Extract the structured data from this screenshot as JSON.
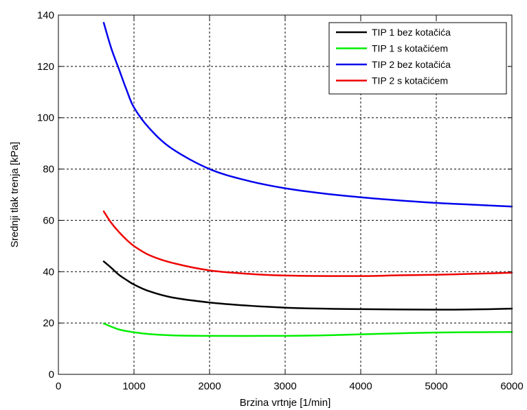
{
  "chart_data": {
    "type": "line",
    "xlabel": "Brzina vrtnje [1/min]",
    "ylabel": "Srednji tlak trenja [kPa]",
    "xlim": [
      0,
      6000
    ],
    "ylim": [
      0,
      140
    ],
    "xticks": [
      0,
      1000,
      2000,
      3000,
      4000,
      5000,
      6000
    ],
    "yticks": [
      0,
      20,
      40,
      60,
      80,
      100,
      120,
      140
    ],
    "grid": true,
    "grid_style": "dashed",
    "legend_position": "top-right",
    "series": [
      {
        "name": "TIP 1 bez kotačića",
        "color": "#000000",
        "points": [
          [
            600,
            44
          ],
          [
            700,
            41.5
          ],
          [
            800,
            38.8
          ],
          [
            900,
            36.8
          ],
          [
            1000,
            35
          ],
          [
            1200,
            32.4
          ],
          [
            1500,
            30
          ],
          [
            2000,
            28
          ],
          [
            2500,
            26.8
          ],
          [
            3000,
            26
          ],
          [
            3500,
            25.6
          ],
          [
            4000,
            25.4
          ],
          [
            5000,
            25.2
          ],
          [
            5500,
            25.3
          ],
          [
            6000,
            25.6
          ]
        ]
      },
      {
        "name": "TIP 1 s kotačićem",
        "color": "#00ee00",
        "points": [
          [
            600,
            19.8
          ],
          [
            800,
            17.5
          ],
          [
            1000,
            16.4
          ],
          [
            1200,
            15.7
          ],
          [
            1500,
            15.2
          ],
          [
            2000,
            15
          ],
          [
            3000,
            15
          ],
          [
            3500,
            15.2
          ],
          [
            4000,
            15.6
          ],
          [
            5000,
            16.3
          ],
          [
            6000,
            16.5
          ]
        ]
      },
      {
        "name": "TIP 2 bez kotačića",
        "color": "#0000ee",
        "points": [
          [
            600,
            137
          ],
          [
            700,
            127
          ],
          [
            800,
            119
          ],
          [
            900,
            111
          ],
          [
            1000,
            104
          ],
          [
            1200,
            96
          ],
          [
            1500,
            88
          ],
          [
            2000,
            80
          ],
          [
            2500,
            75.5
          ],
          [
            3000,
            72.5
          ],
          [
            3500,
            70.5
          ],
          [
            4000,
            69
          ],
          [
            4500,
            67.8
          ],
          [
            5000,
            66.8
          ],
          [
            5500,
            66.1
          ],
          [
            6000,
            65.4
          ]
        ]
      },
      {
        "name": "TIP 2 s kotačićem",
        "color": "#ee0000",
        "points": [
          [
            600,
            63.5
          ],
          [
            700,
            59
          ],
          [
            800,
            55.5
          ],
          [
            900,
            52.5
          ],
          [
            1000,
            50
          ],
          [
            1200,
            46.5
          ],
          [
            1500,
            43.5
          ],
          [
            2000,
            40.5
          ],
          [
            2500,
            39.2
          ],
          [
            3000,
            38.5
          ],
          [
            4000,
            38.3
          ],
          [
            4500,
            38.6
          ],
          [
            5000,
            38.8
          ],
          [
            5500,
            39.2
          ],
          [
            6000,
            39.6
          ]
        ]
      }
    ]
  }
}
